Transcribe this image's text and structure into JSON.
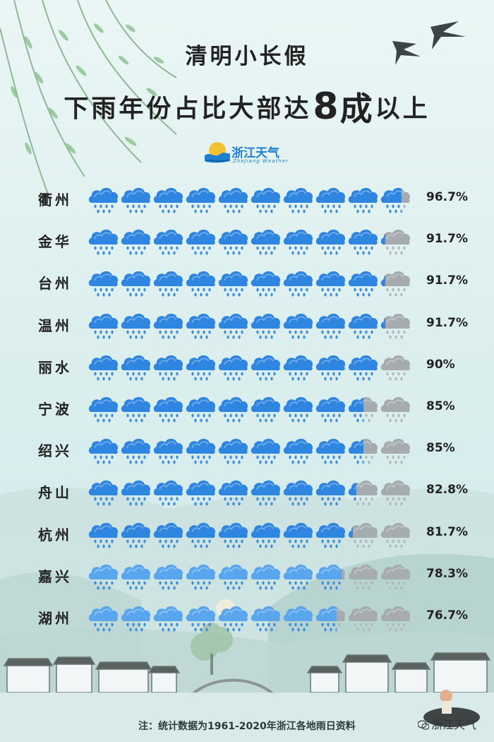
{
  "title_line1": "清明小长假",
  "title_line2_a": "下雨年份占比大部达",
  "title_line2_b": "8",
  "title_line2_c": "成",
  "title_line2_d": "以上",
  "logo": {
    "name": "浙江天气",
    "sub": "ZheJiang Weather"
  },
  "footnote": "注：统计数据为1961-2020年浙江各地雨日资料",
  "watermark": "浙江天气",
  "colors": {
    "rain": "#2f86e0",
    "rain_light": "#5aa6ee",
    "drop": "#3b8de0",
    "gray": "#a6abb0",
    "gray_drop": "#b3b8bc"
  },
  "chart_data": {
    "type": "pictograph",
    "icon": "rain-cloud-icon",
    "icons_per_row": 10,
    "categories": [
      "衢州",
      "金华",
      "台州",
      "温州",
      "丽水",
      "宁波",
      "绍兴",
      "舟山",
      "杭州",
      "嘉兴",
      "湖州"
    ],
    "values": [
      96.7,
      91.7,
      91.7,
      91.7,
      90,
      85,
      85,
      82.8,
      81.7,
      78.3,
      76.7
    ],
    "labels": [
      "96.7%",
      "91.7%",
      "91.7%",
      "91.7%",
      "90%",
      "85%",
      "85%",
      "82.8%",
      "81.7%",
      "78.3%",
      "76.7%"
    ]
  }
}
